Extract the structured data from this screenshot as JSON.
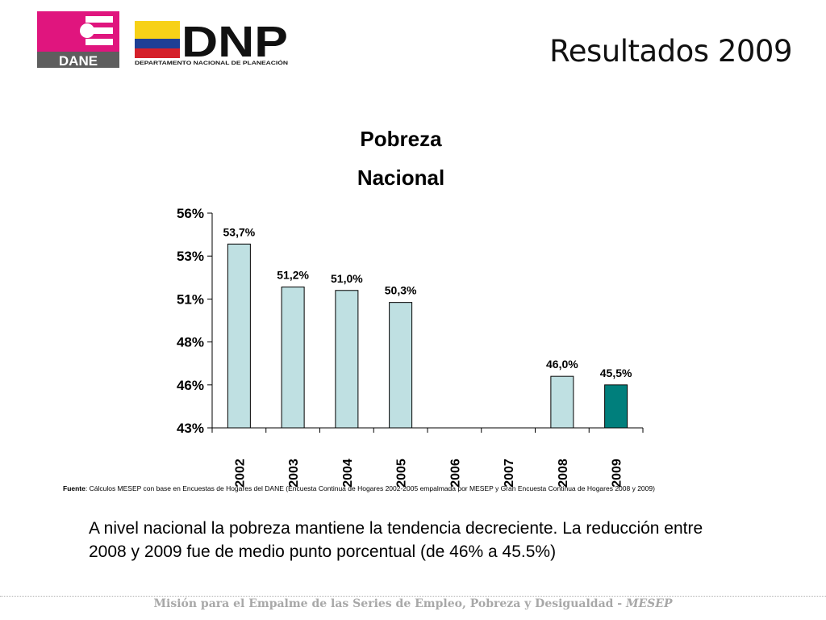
{
  "header": {
    "slide_title": "Resultados 2009",
    "logo_dane_text": "DANE",
    "logo_dnp_text": "DNP",
    "logo_dnp_subtitle": "DEPARTAMENTO NACIONAL DE PLANEACIÓN"
  },
  "chart_data": {
    "type": "bar",
    "title": "Pobreza",
    "subtitle": "Nacional",
    "categories": [
      "2002",
      "2003",
      "2004",
      "2005",
      "2006",
      "2007",
      "2008",
      "2009"
    ],
    "values": [
      53.7,
      51.2,
      51.0,
      50.3,
      null,
      null,
      46.0,
      45.5
    ],
    "data_labels": [
      "53,7%",
      "51,2%",
      "51,0%",
      "50,3%",
      "",
      "",
      "46,0%",
      "45,5%"
    ],
    "ytick_values": [
      43,
      45.5,
      48,
      50.5,
      53,
      55.5
    ],
    "ytick_labels": [
      "43%",
      "46%",
      "48%",
      "51%",
      "53%",
      "56%"
    ],
    "ylim": [
      43,
      55.5
    ],
    "xlabel": "",
    "ylabel": "",
    "bar_color": "#bfe0e2",
    "highlight_color": "#007f7c",
    "highlight_category": "2009",
    "grid": false
  },
  "source": {
    "label": "Fuente",
    "text": ": Cálculos MESEP con base en Encuestas de Hogares del DANE (Encuesta Continua de Hogares 2002-2005 empalmada por MESEP y Gran Encuesta Continua de Hogares 2008 y 2009)"
  },
  "summary": "A nivel nacional la pobreza mantiene la tendencia decreciente. La reducción entre 2008 y 2009 fue de medio punto porcentual (de 46% a 45.5%)",
  "footer": {
    "text": "Misión para el Empalme de las Series de Empleo, Pobreza y Desigualdad - ",
    "acronym": "MESEP"
  },
  "colors": {
    "dane_magenta": "#e0157e",
    "dnp_yellow": "#f7d117",
    "dnp_blue": "#1f3f95",
    "dnp_red": "#d5202a",
    "footer_gray": "#a8a8a8"
  }
}
